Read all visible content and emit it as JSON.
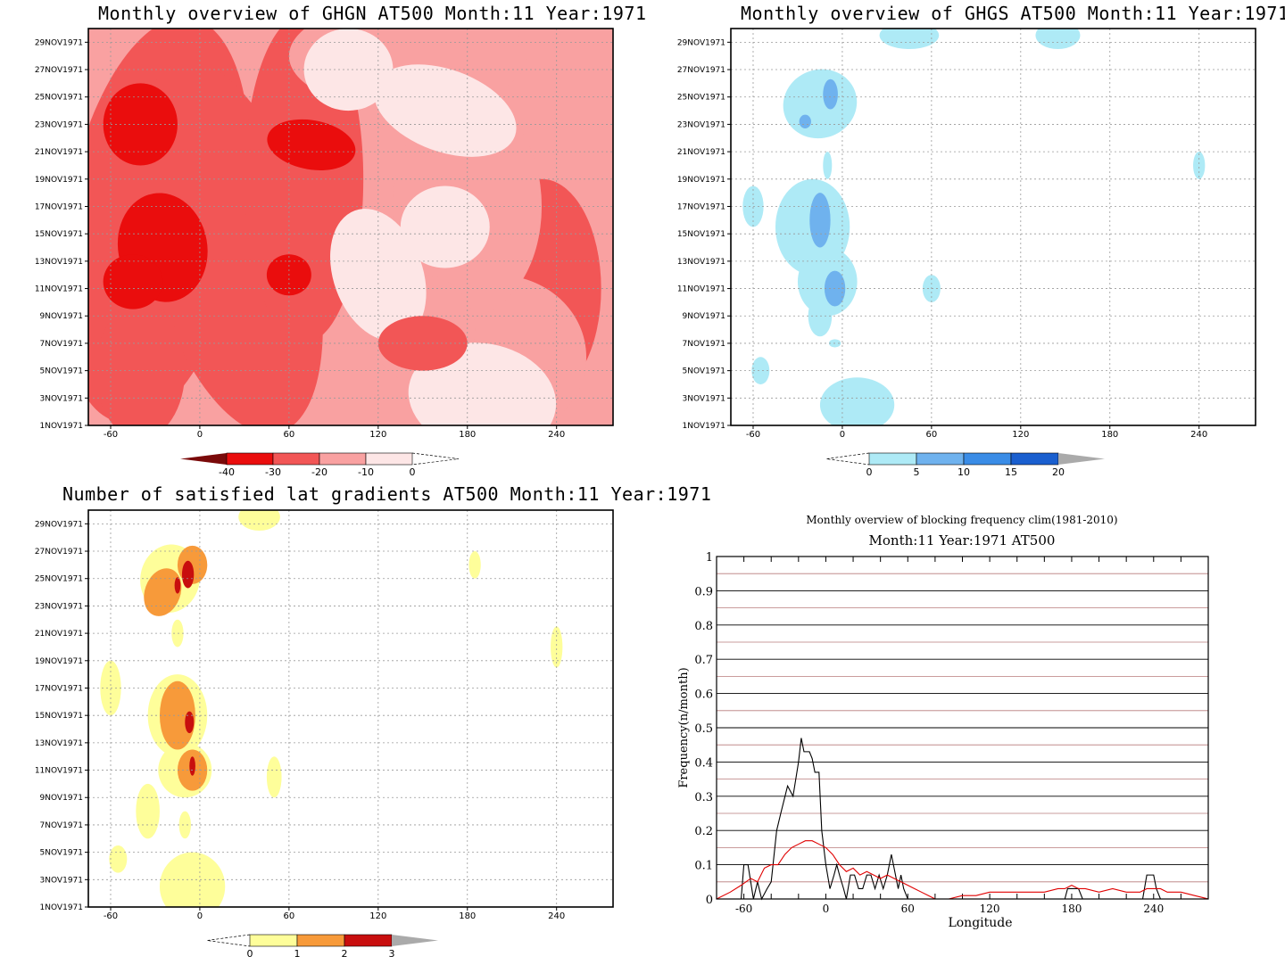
{
  "chart_data": [
    {
      "type": "heatmap",
      "title": "Monthly overview of GHGN AT500 Month:11 Year:1971",
      "xticks": [
        "-60",
        "0",
        "60",
        "120",
        "180",
        "240"
      ],
      "xlim": [
        -75,
        278
      ],
      "yticks": [
        "1NOV1971",
        "3NOV1971",
        "5NOV1971",
        "7NOV1971",
        "9NOV1971",
        "11NOV1971",
        "13NOV1971",
        "15NOV1971",
        "17NOV1971",
        "19NOV1971",
        "21NOV1971",
        "23NOV1971",
        "25NOV1971",
        "27NOV1971",
        "29NOV1971"
      ],
      "ylim": [
        1,
        30
      ],
      "colorbar": {
        "ticks": [
          "-40",
          "-30",
          "-20",
          "-10",
          "0"
        ],
        "colors": [
          "#7a0a0a",
          "#ea0d0d",
          "#f25656",
          "#f9a1a1",
          "#fde6e6"
        ]
      }
    },
    {
      "type": "heatmap",
      "title": "Monthly overview of GHGS AT500 Month:11 Year:1971",
      "xticks": [
        "-60",
        "0",
        "60",
        "120",
        "180",
        "240"
      ],
      "xlim": [
        -75,
        278
      ],
      "yticks": [
        "1NOV1971",
        "3NOV1971",
        "5NOV1971",
        "7NOV1971",
        "9NOV1971",
        "11NOV1971",
        "13NOV1971",
        "15NOV1971",
        "17NOV1971",
        "19NOV1971",
        "21NOV1971",
        "23NOV1971",
        "25NOV1971",
        "27NOV1971",
        "29NOV1971"
      ],
      "ylim": [
        1,
        30
      ],
      "colorbar": {
        "ticks": [
          "0",
          "5",
          "10",
          "15",
          "20"
        ],
        "colors": [
          "#aeeaf6",
          "#6fb2ee",
          "#3a8ce6",
          "#1a5fcf",
          "#aaaaaa"
        ]
      }
    },
    {
      "type": "heatmap",
      "title": "Number of satisfied lat gradients AT500 Month:11 Year:1971",
      "xticks": [
        "-60",
        "0",
        "60",
        "120",
        "180",
        "240"
      ],
      "xlim": [
        -75,
        278
      ],
      "yticks": [
        "1NOV1971",
        "3NOV1971",
        "5NOV1971",
        "7NOV1971",
        "9NOV1971",
        "11NOV1971",
        "13NOV1971",
        "15NOV1971",
        "17NOV1971",
        "19NOV1971",
        "21NOV1971",
        "23NOV1971",
        "25NOV1971",
        "27NOV1971",
        "29NOV1971"
      ],
      "ylim": [
        1,
        30
      ],
      "colorbar": {
        "ticks": [
          "0",
          "1",
          "2",
          "3"
        ],
        "colors": [
          "#fefe9a",
          "#f79a3a",
          "#c80e0e",
          "#aaaaaa"
        ]
      }
    },
    {
      "type": "line",
      "title": "Monthly overview of blocking frequency clim(1981-2010)",
      "subtitle": "Month:11 Year:1971  AT500",
      "xlabel": "Longitude",
      "ylabel": "Frequency(n/month)",
      "xlim": [
        -80,
        280
      ],
      "ylim": [
        0,
        1
      ],
      "xticks": [
        "-60",
        "0",
        "60",
        "120",
        "180",
        "240"
      ],
      "yticks": [
        "0",
        "0.1",
        "0.2",
        "0.3",
        "0.4",
        "0.5",
        "0.6",
        "0.7",
        "0.8",
        "0.9",
        "1"
      ],
      "series": [
        {
          "color": "#000000",
          "x": [
            -80,
            -62,
            -60,
            -57,
            -53,
            -50,
            -47,
            -43,
            -40,
            -36,
            -33,
            -28,
            -24,
            -20,
            -18,
            -16,
            -12,
            -10,
            -8,
            -5,
            -3,
            0,
            3,
            6,
            8,
            10,
            13,
            15,
            18,
            21,
            24,
            27,
            30,
            33,
            36,
            39,
            42,
            45,
            48,
            51,
            53,
            55,
            57,
            60,
            62,
            65,
            175,
            177,
            180,
            183,
            185,
            188,
            232,
            235,
            238,
            240,
            242,
            245,
            280
          ],
          "y": [
            0,
            0,
            0.1,
            0.1,
            0,
            0.05,
            0,
            0.03,
            0.05,
            0.2,
            0.25,
            0.33,
            0.3,
            0.4,
            0.47,
            0.43,
            0.43,
            0.41,
            0.37,
            0.37,
            0.2,
            0.1,
            0.03,
            0.07,
            0.1,
            0.07,
            0.03,
            0,
            0.07,
            0.07,
            0.03,
            0.03,
            0.07,
            0.07,
            0.03,
            0.07,
            0.03,
            0.07,
            0.13,
            0.07,
            0.03,
            0.07,
            0.03,
            0,
            0,
            0,
            0,
            0.03,
            0.03,
            0.03,
            0.03,
            0,
            0,
            0.07,
            0.07,
            0.07,
            0.03,
            0,
            0
          ]
        },
        {
          "color": "#e00000",
          "x": [
            -80,
            -70,
            -62,
            -55,
            -50,
            -45,
            -40,
            -35,
            -30,
            -25,
            -20,
            -15,
            -10,
            -5,
            0,
            5,
            10,
            15,
            20,
            25,
            30,
            35,
            40,
            45,
            50,
            55,
            60,
            65,
            70,
            75,
            80,
            90,
            100,
            110,
            120,
            130,
            140,
            150,
            160,
            170,
            175,
            180,
            185,
            190,
            200,
            210,
            220,
            230,
            235,
            240,
            245,
            250,
            260,
            270,
            280
          ],
          "y": [
            0,
            0.02,
            0.04,
            0.06,
            0.05,
            0.09,
            0.1,
            0.1,
            0.13,
            0.15,
            0.16,
            0.17,
            0.17,
            0.16,
            0.15,
            0.13,
            0.1,
            0.08,
            0.09,
            0.07,
            0.08,
            0.07,
            0.06,
            0.07,
            0.06,
            0.05,
            0.04,
            0.03,
            0.02,
            0.01,
            0.0,
            0.0,
            0.01,
            0.01,
            0.02,
            0.02,
            0.02,
            0.02,
            0.02,
            0.03,
            0.03,
            0.04,
            0.03,
            0.03,
            0.02,
            0.03,
            0.02,
            0.02,
            0.03,
            0.03,
            0.03,
            0.02,
            0.02,
            0.01,
            0.0
          ]
        }
      ]
    }
  ]
}
